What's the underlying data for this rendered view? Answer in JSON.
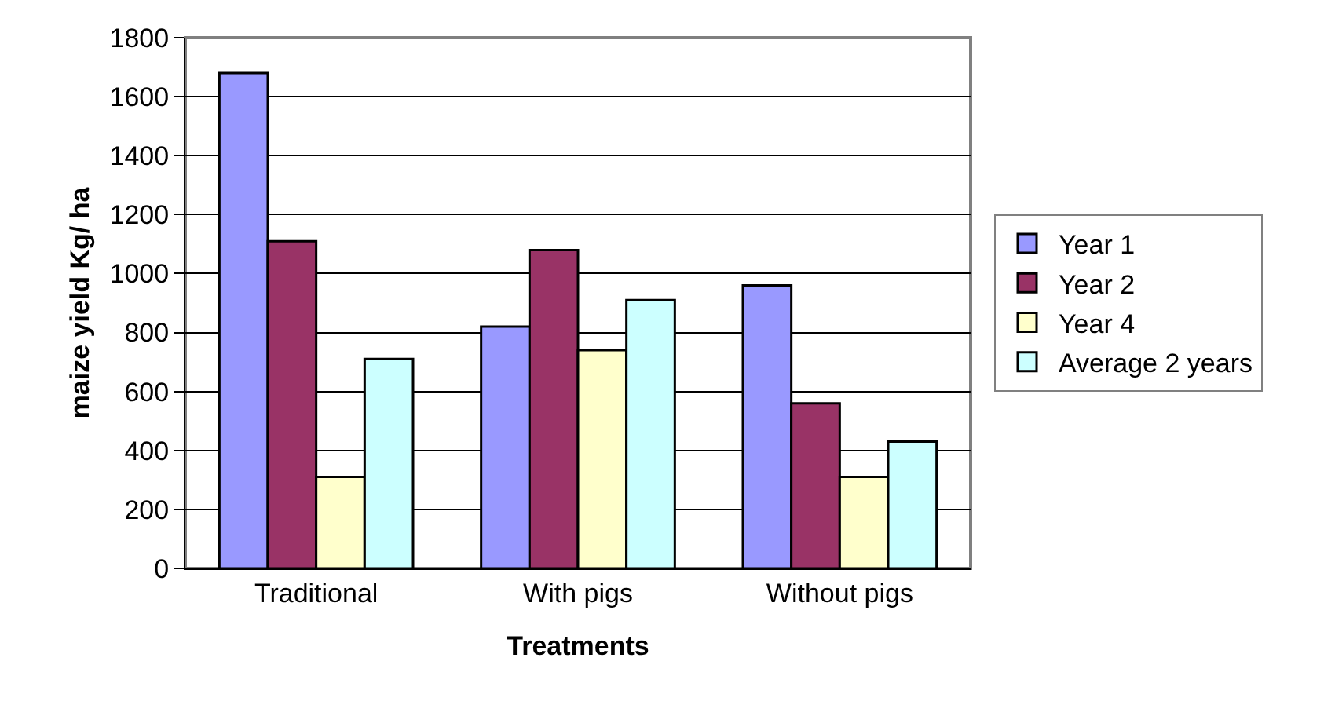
{
  "chart_data": {
    "type": "bar",
    "xlabel": "Treatments",
    "ylabel": "maize yield Kg/ ha",
    "categories": [
      "Traditional",
      "With pigs",
      "Without pigs"
    ],
    "series": [
      {
        "name": "Year 1",
        "color": "#9999ff",
        "values": [
          1680,
          820,
          960
        ]
      },
      {
        "name": "Year 2",
        "color": "#993366",
        "values": [
          1110,
          1080,
          560
        ]
      },
      {
        "name": "Year 4",
        "color": "#ffffcc",
        "values": [
          310,
          740,
          310
        ]
      },
      {
        "name": "Average 2 years",
        "color": "#ccffff",
        "values": [
          710,
          910,
          430
        ]
      }
    ],
    "ylim": [
      0,
      1800
    ],
    "yticks": [
      0,
      200,
      400,
      600,
      800,
      1000,
      1200,
      1400,
      1600,
      1800
    ],
    "grid": "y",
    "legend": "right"
  }
}
